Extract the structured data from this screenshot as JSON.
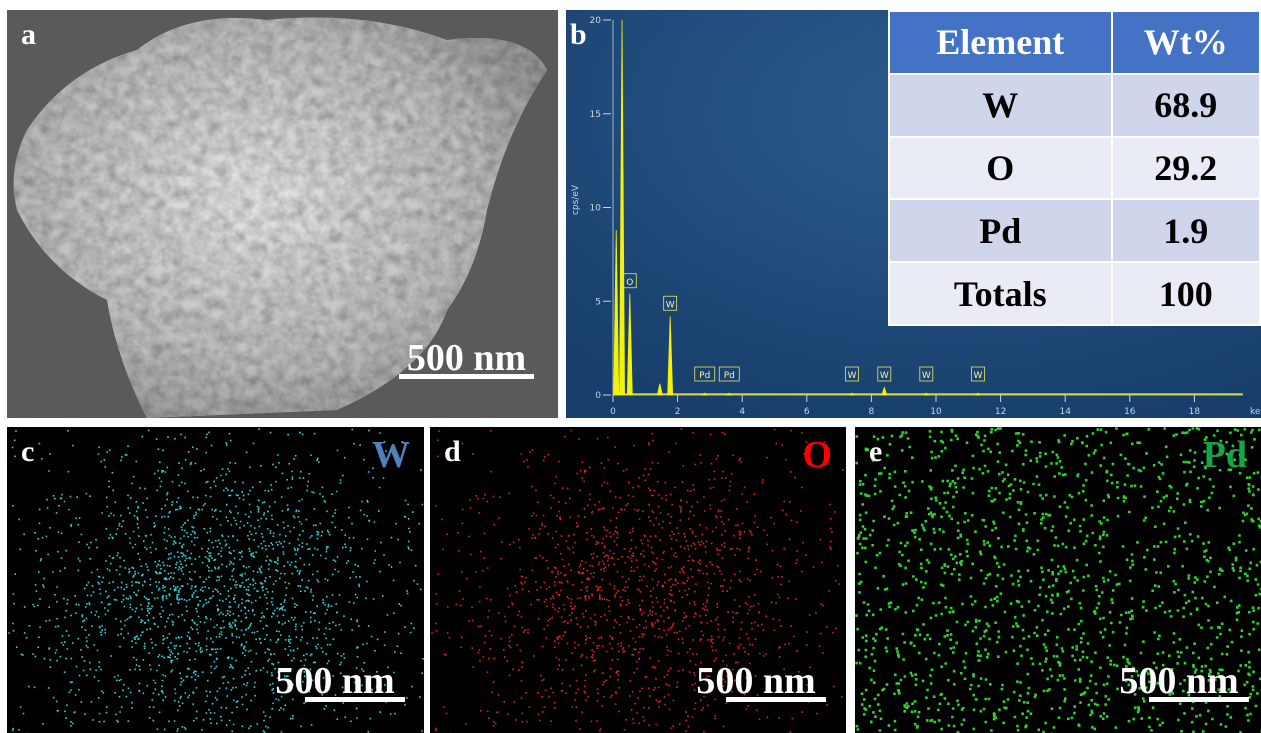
{
  "panels": {
    "a": {
      "label": "a",
      "scale_bar": "500 nm"
    },
    "b": {
      "label": "b",
      "spectrum": {
        "ylabel": "cps/eV",
        "xlabel": "ke",
        "xlim": [
          0,
          19.5
        ],
        "ylim": [
          0,
          20
        ],
        "xticks": [
          0,
          2,
          4,
          6,
          8,
          10,
          12,
          14,
          16,
          18
        ],
        "yticks": [
          0,
          5,
          10,
          15,
          20
        ],
        "color": "#f2f20a",
        "peaks": [
          {
            "x": 0.1,
            "y": 8.8
          },
          {
            "x": 0.28,
            "y": 20
          },
          {
            "x": 0.52,
            "y": 5.4,
            "label": "O"
          },
          {
            "x": 1.45,
            "y": 0.6
          },
          {
            "x": 1.77,
            "y": 4.2,
            "label": "W"
          },
          {
            "x": 2.84,
            "y": 0.1,
            "label": "Pd"
          },
          {
            "x": 3.6,
            "y": 0.1,
            "label": "Pd"
          },
          {
            "x": 7.4,
            "y": 0.1,
            "label": "W"
          },
          {
            "x": 8.4,
            "y": 0.4,
            "label": "W"
          },
          {
            "x": 9.7,
            "y": 0.1,
            "label": "W"
          },
          {
            "x": 11.3,
            "y": 0.1,
            "label": "W"
          }
        ]
      },
      "table": {
        "header": [
          "Element",
          "Wt%"
        ],
        "rows": [
          [
            "W",
            68.9
          ],
          [
            "O",
            29.2
          ],
          [
            "Pd",
            1.9
          ],
          [
            "Totals",
            100
          ]
        ]
      }
    },
    "c": {
      "label": "c",
      "element": "W",
      "scale_bar": "500 nm"
    },
    "d": {
      "label": "d",
      "element": "O",
      "scale_bar": "500 nm"
    },
    "e": {
      "label": "e",
      "element": "Pd",
      "scale_bar": "500 nm"
    }
  }
}
